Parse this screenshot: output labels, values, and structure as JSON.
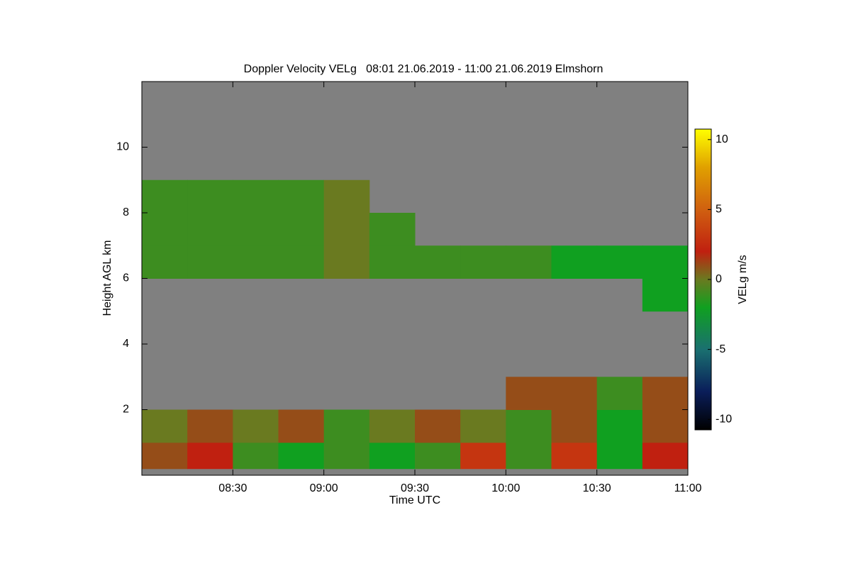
{
  "chart_data": {
    "type": "heatmap",
    "title": "Doppler Velocity VELg   08:01 21.06.2019 - 11:00 21.06.2019 Elmshorn",
    "x_label": "Time UTC",
    "y_label": "Height AGL km",
    "colorbar_label": "VELg m/s",
    "background": "#808080",
    "xlim": [
      8.0,
      11.0
    ],
    "xticks": [
      {
        "value": 8.5,
        "label": "08:30"
      },
      {
        "value": 9.0,
        "label": "09:00"
      },
      {
        "value": 9.5,
        "label": "09:30"
      },
      {
        "value": 10.0,
        "label": "10:00"
      },
      {
        "value": 10.5,
        "label": "10:30"
      },
      {
        "value": 11.0,
        "label": "11:00"
      }
    ],
    "ylim": [
      0,
      12
    ],
    "yticks": [
      2,
      4,
      6,
      8,
      10
    ],
    "clim": [
      -10.75,
      10.75
    ],
    "cticks": [
      -10,
      -5,
      0,
      5,
      10
    ],
    "colorscale": [
      [
        -10.75,
        "#000000"
      ],
      [
        -8,
        "#0a1e5a"
      ],
      [
        -5,
        "#1a7070"
      ],
      [
        -2,
        "#10a020"
      ],
      [
        0,
        "#6a7a20"
      ],
      [
        2,
        "#c02010"
      ],
      [
        5,
        "#d06010"
      ],
      [
        8,
        "#e0a000"
      ],
      [
        10.75,
        "#ffff00"
      ]
    ],
    "xbins": [
      8.0,
      8.25,
      8.5,
      8.75,
      9.0,
      9.25,
      9.5,
      9.75,
      10.0,
      10.25,
      10.5,
      10.75,
      11.0
    ],
    "ybins": [
      0.2,
      1,
      2,
      3,
      4,
      5,
      6,
      7,
      8,
      9
    ],
    "z": [
      [
        1,
        2,
        -1,
        -2,
        -1,
        -2,
        -1,
        3,
        -1,
        3,
        -2,
        2
      ],
      [
        0,
        1,
        0,
        1,
        -1,
        0,
        1,
        0,
        -1,
        1,
        -2,
        1
      ],
      [
        null,
        null,
        null,
        null,
        null,
        null,
        null,
        null,
        1,
        1,
        -1,
        1
      ],
      [
        null,
        null,
        null,
        null,
        null,
        null,
        null,
        null,
        null,
        null,
        null,
        null
      ],
      [
        null,
        null,
        null,
        null,
        null,
        null,
        null,
        null,
        null,
        null,
        null,
        null
      ],
      [
        null,
        null,
        null,
        null,
        null,
        null,
        null,
        null,
        null,
        null,
        null,
        -2
      ],
      [
        -1,
        -1,
        -1,
        -1,
        0,
        -1,
        -1,
        -1,
        -1,
        -2,
        -2,
        -2
      ],
      [
        -1,
        -1,
        -1,
        -1,
        0,
        -1,
        null,
        null,
        null,
        null,
        null,
        null
      ],
      [
        -1,
        -1,
        -1,
        -1,
        0,
        null,
        null,
        null,
        null,
        null,
        null,
        null
      ]
    ]
  }
}
